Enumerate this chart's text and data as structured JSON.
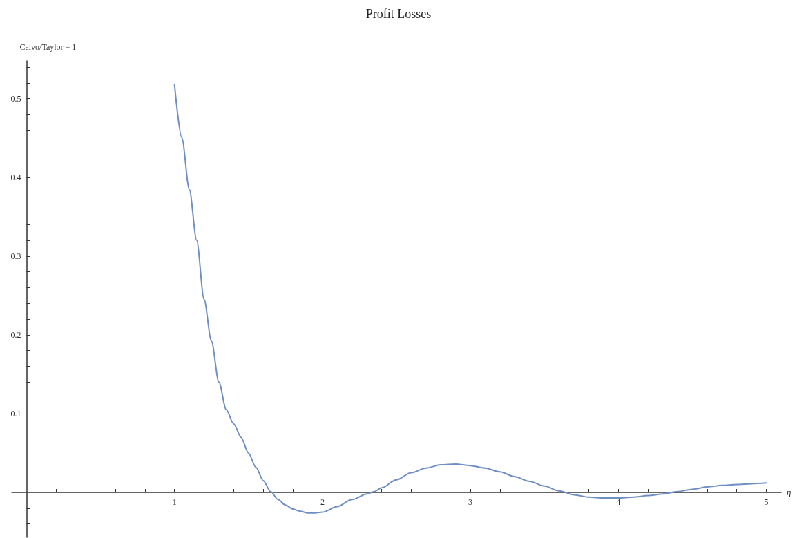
{
  "chart_data": {
    "type": "line",
    "title": "Profit Losses",
    "xlabel": "η",
    "ylabel": "Calvo/Taylor − 1",
    "x": [
      1.0,
      1.05,
      1.1,
      1.15,
      1.2,
      1.25,
      1.3,
      1.35,
      1.4,
      1.45,
      1.5,
      1.55,
      1.6,
      1.65,
      1.7,
      1.75,
      1.8,
      1.85,
      1.9,
      1.95,
      2.0,
      2.1,
      2.2,
      2.3,
      2.35,
      2.4,
      2.5,
      2.6,
      2.7,
      2.8,
      2.9,
      3.0,
      3.1,
      3.2,
      3.3,
      3.4,
      3.5,
      3.6,
      3.7,
      3.8,
      3.9,
      4.0,
      4.1,
      4.2,
      4.3,
      4.4,
      4.5,
      4.6,
      4.7,
      4.8,
      4.9,
      5.0
    ],
    "series": [
      {
        "color": "#6f8fc4",
        "values": [
          0.518,
          0.45,
          0.385,
          0.32,
          0.245,
          0.192,
          0.14,
          0.105,
          0.087,
          0.07,
          0.05,
          0.032,
          0.015,
          0.001,
          -0.009,
          -0.016,
          -0.021,
          -0.024,
          -0.026,
          -0.026,
          -0.025,
          -0.018,
          -0.009,
          -0.002,
          0.001,
          0.006,
          0.016,
          0.025,
          0.031,
          0.035,
          0.036,
          0.034,
          0.031,
          0.026,
          0.02,
          0.014,
          0.008,
          0.002,
          -0.003,
          -0.006,
          -0.007,
          -0.007,
          -0.006,
          -0.004,
          -0.002,
          0.001,
          0.004,
          0.007,
          0.009,
          0.01,
          0.011,
          0.012
        ]
      }
    ],
    "xlim": [
      -0.1,
      5.1
    ],
    "ylim": [
      -0.057,
      0.548
    ],
    "xticks": [
      {
        "value": 0.2,
        "label": null
      },
      {
        "value": 0.4,
        "label": null
      },
      {
        "value": 0.6,
        "label": null
      },
      {
        "value": 0.8,
        "label": null
      },
      1,
      {
        "value": 1.2,
        "label": null
      },
      {
        "value": 1.4,
        "label": null
      },
      {
        "value": 1.6,
        "label": null
      },
      {
        "value": 1.8,
        "label": null
      },
      2,
      {
        "value": 2.2,
        "label": null
      },
      {
        "value": 2.4,
        "label": null
      },
      {
        "value": 2.6,
        "label": null
      },
      {
        "value": 2.8,
        "label": null
      },
      3,
      {
        "value": 3.2,
        "label": null
      },
      {
        "value": 3.4,
        "label": null
      },
      {
        "value": 3.6,
        "label": null
      },
      {
        "value": 3.8,
        "label": null
      },
      4,
      {
        "value": 4.2,
        "label": null
      },
      {
        "value": 4.4,
        "label": null
      },
      {
        "value": 4.6,
        "label": null
      },
      {
        "value": 4.8,
        "label": null
      },
      5
    ],
    "yticks": [
      {
        "value": -0.04,
        "label": null
      },
      {
        "value": -0.02,
        "label": null
      },
      {
        "value": 0.02,
        "label": null
      },
      {
        "value": 0.04,
        "label": null
      },
      {
        "value": 0.06,
        "label": null
      },
      {
        "value": 0.08,
        "label": null
      },
      0.1,
      {
        "value": 0.12,
        "label": null
      },
      {
        "value": 0.14,
        "label": null
      },
      {
        "value": 0.16,
        "label": null
      },
      {
        "value": 0.18,
        "label": null
      },
      0.2,
      {
        "value": 0.22,
        "label": null
      },
      {
        "value": 0.24,
        "label": null
      },
      {
        "value": 0.26,
        "label": null
      },
      {
        "value": 0.28,
        "label": null
      },
      0.3,
      {
        "value": 0.32,
        "label": null
      },
      {
        "value": 0.34,
        "label": null
      },
      {
        "value": 0.36,
        "label": null
      },
      {
        "value": 0.38,
        "label": null
      },
      0.4,
      {
        "value": 0.42,
        "label": null
      },
      {
        "value": 0.44,
        "label": null
      },
      {
        "value": 0.46,
        "label": null
      },
      {
        "value": 0.48,
        "label": null
      },
      0.5,
      {
        "value": 0.52,
        "label": null
      },
      {
        "value": 0.54,
        "label": null
      }
    ],
    "grid": false,
    "marker": "none",
    "line_style": "solid"
  }
}
